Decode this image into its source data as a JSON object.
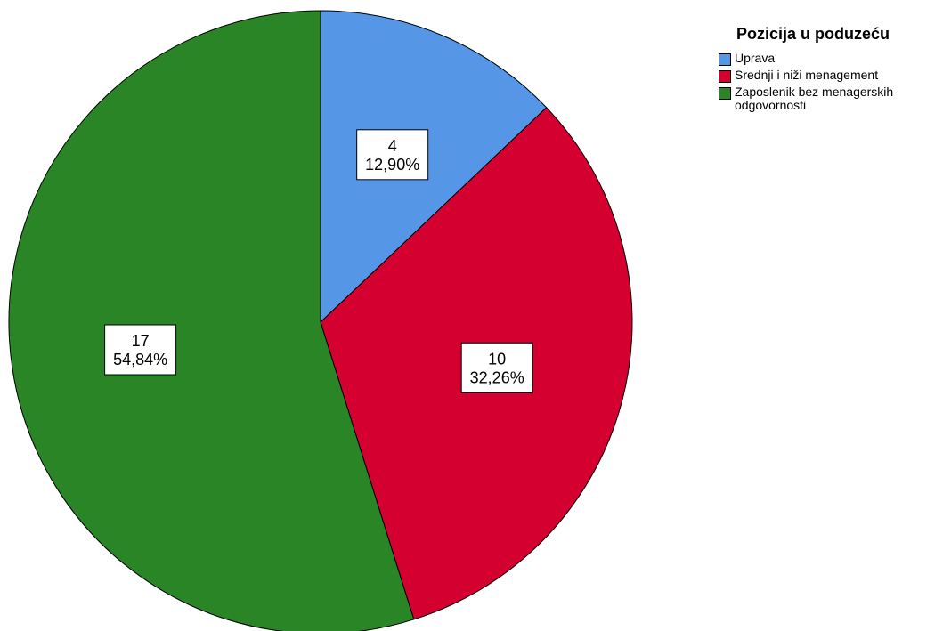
{
  "chart_data": {
    "type": "pie",
    "legend_title": "Pozicija u poduzeću",
    "legend_position": "top-right",
    "slices": [
      {
        "label": "Uprava",
        "value": 4,
        "percent": "12,90%",
        "color": "#5596e6"
      },
      {
        "label": "Srednji i niži menagement",
        "value": 10,
        "percent": "32,26%",
        "color": "#d30030"
      },
      {
        "label": "Zaposlenik bez menagerskih\nodgovornosti",
        "value": 17,
        "percent": "54,84%",
        "color": "#2a8527"
      }
    ],
    "start_angle_deg": 0,
    "direction": "clockwise"
  }
}
